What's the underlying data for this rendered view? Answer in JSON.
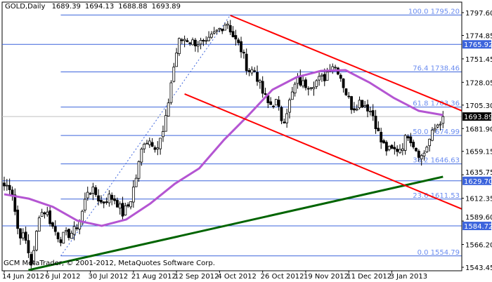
{
  "header": {
    "symbol": "GOLD,Daily",
    "open": "1689.39",
    "high": "1694.13",
    "low": "1688.88",
    "close": "1693.89"
  },
  "copyright": "GCM MetaTrader, © 2001-2012, MetaQuotes Software Corp.",
  "chart_data": {
    "type": "candlestick",
    "title": "GOLD,Daily",
    "ylim": [
      1543.45,
      1797.6
    ],
    "y_ticks": [
      "1797.60",
      "1774.85",
      "1751.45",
      "1728.05",
      "1705.30",
      "1681.90",
      "1659.15",
      "1635.75",
      "1612.35",
      "1589.60",
      "1566.20",
      "1543.45"
    ],
    "x_ticks": [
      {
        "label": "14 Jun 2012",
        "bar": 0
      },
      {
        "label": "6 Jul 2012",
        "bar": 16
      },
      {
        "label": "30 Jul 2012",
        "bar": 32
      },
      {
        "label": "21 Aug 2012",
        "bar": 48
      },
      {
        "label": "12 Sep 2012",
        "bar": 64
      },
      {
        "label": "4 Oct 2012",
        "bar": 80
      },
      {
        "label": "26 Oct 2012",
        "bar": 96
      },
      {
        "label": "19 Nov 2012",
        "bar": 112
      },
      {
        "label": "11 Dec 2012",
        "bar": 128
      },
      {
        "label": "3 Jan 2013",
        "bar": 144
      }
    ],
    "bar_count": 164,
    "approx_closes": [
      1624.7,
      1624.7,
      1579,
      1572,
      1544,
      1597,
      1600,
      1583,
      1572,
      1576,
      1579,
      1593,
      1621,
      1618,
      1607,
      1614,
      1611,
      1597,
      1607,
      1635,
      1670,
      1670,
      1663,
      1681,
      1730,
      1768,
      1772,
      1768,
      1768,
      1765,
      1775,
      1782,
      1789,
      1772,
      1761,
      1740,
      1740,
      1719,
      1705,
      1709,
      1688,
      1709,
      1730,
      1726,
      1726,
      1730,
      1733,
      1747,
      1740,
      1719,
      1702,
      1709,
      1705,
      1695,
      1670,
      1660,
      1660,
      1663,
      1677,
      1663,
      1653,
      1670,
      1684,
      1693.89
    ],
    "ma_purple": [
      1616.3,
      1612,
      1603.7,
      1590,
      1584.8,
      1591.1,
      1607.2,
      1626.8,
      1642.2,
      1670.2,
      1694.7,
      1720.6,
      1733.2,
      1739.5,
      1740.2,
      1727.6,
      1712.2,
      1699.6,
      1695.4
    ],
    "ma_green": [
      1540.6,
      1633.8
    ],
    "ma_green_bars": [
      9,
      163
    ],
    "trendlines": [
      {
        "color": "#ff0000",
        "from_bar": 84,
        "from": 1794.8,
        "to_bar": 170,
        "to": 1699.6
      },
      {
        "color": "#ff0000",
        "from_bar": 67,
        "from": 1716.4,
        "to_bar": 170,
        "to": 1601.6
      }
    ],
    "fib_base": {
      "from_bar": 21,
      "from": 1554.79,
      "to_bar": 84,
      "to": 1795.2
    },
    "fib_levels": [
      {
        "label": "100.0 1795.20",
        "price": 1795.2
      },
      {
        "label": "76.4 1738.46",
        "price": 1738.46
      },
      {
        "label": "61.8 1703.36",
        "price": 1703.36
      },
      {
        "label": "50.0 1674.99",
        "price": 1674.99
      },
      {
        "label": "38.2 1646.63",
        "price": 1646.63
      },
      {
        "label": "23.6 1611.53",
        "price": 1611.53
      },
      {
        "label": "0.0 1554.79",
        "price": 1554.79
      }
    ],
    "horizontal_levels": [
      {
        "label": "1765.92",
        "price": 1765.92
      },
      {
        "label": "1629.70",
        "price": 1629.7
      },
      {
        "label": "1584.72",
        "price": 1584.72
      }
    ],
    "bid": {
      "label": "1693.89",
      "price": 1693.89
    },
    "colors": {
      "level": "#3c64dc",
      "fib_text": "#6a8cf0",
      "ma_purple": "#b455d2",
      "ma_green": "#006400",
      "trend": "#ff0000",
      "bid": "#c0c0c0"
    }
  }
}
